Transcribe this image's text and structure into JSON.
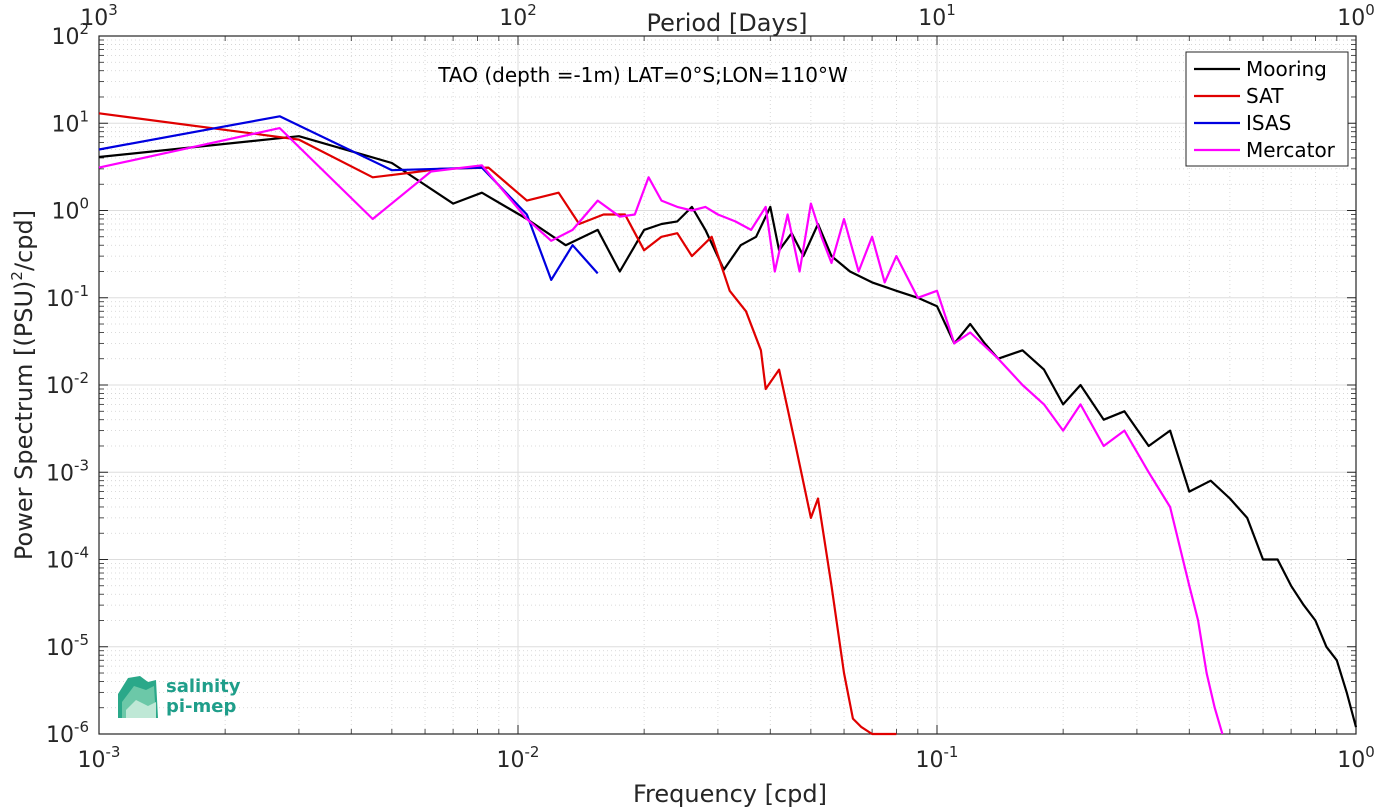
{
  "chart_data": {
    "type": "line",
    "title": "TAO (depth =-1m) LAT=0°S;LON=110°W",
    "xlabel": "Frequency [cpd]",
    "ylabel": "Power Spectrum [(PSU)",
    "ylabel_sup": "2",
    "ylabel_tail": "/cpd]",
    "top_xlabel": "Period [Days]",
    "xscale": "log",
    "yscale": "log",
    "xlim": [
      0.001,
      1
    ],
    "ylim": [
      1e-06,
      100
    ],
    "grid": true,
    "legend_position": "top-right",
    "x_ticks": [
      {
        "base": "10",
        "exp": "-3",
        "value": 0.001
      },
      {
        "base": "10",
        "exp": "-2",
        "value": 0.01
      },
      {
        "base": "10",
        "exp": "-1",
        "value": 0.1
      },
      {
        "base": "10",
        "exp": "0",
        "value": 1
      }
    ],
    "top_ticks": [
      {
        "base": "10",
        "exp": "3",
        "value": 0.001
      },
      {
        "base": "10",
        "exp": "2",
        "value": 0.01
      },
      {
        "base": "10",
        "exp": "1",
        "value": 0.1
      },
      {
        "base": "10",
        "exp": "0",
        "value": 1
      }
    ],
    "y_ticks": [
      {
        "base": "10",
        "exp": "2",
        "value": 100
      },
      {
        "base": "10",
        "exp": "1",
        "value": 10
      },
      {
        "base": "10",
        "exp": "0",
        "value": 1
      },
      {
        "base": "10",
        "exp": "-1",
        "value": 0.1
      },
      {
        "base": "10",
        "exp": "-2",
        "value": 0.01
      },
      {
        "base": "10",
        "exp": "-3",
        "value": 0.001
      },
      {
        "base": "10",
        "exp": "-4",
        "value": 0.0001
      },
      {
        "base": "10",
        "exp": "-5",
        "value": 1e-05
      },
      {
        "base": "10",
        "exp": "-6",
        "value": 1e-06
      }
    ],
    "series": [
      {
        "name": "Mooring",
        "color": "#000000",
        "x": [
          0.001,
          0.003,
          0.005,
          0.007,
          0.0082,
          0.0105,
          0.013,
          0.0155,
          0.0175,
          0.02,
          0.022,
          0.024,
          0.026,
          0.028,
          0.031,
          0.034,
          0.037,
          0.04,
          0.042,
          0.045,
          0.048,
          0.052,
          0.056,
          0.062,
          0.07,
          0.08,
          0.09,
          0.1,
          0.11,
          0.12,
          0.13,
          0.14,
          0.16,
          0.18,
          0.2,
          0.22,
          0.25,
          0.28,
          0.32,
          0.36,
          0.4,
          0.45,
          0.5,
          0.55,
          0.6,
          0.65,
          0.7,
          0.75,
          0.8,
          0.85,
          0.9,
          0.95,
          1.0
        ],
        "y": [
          4.1,
          7.1,
          3.5,
          1.2,
          1.6,
          0.8,
          0.4,
          0.6,
          0.2,
          0.6,
          0.7,
          0.75,
          1.1,
          0.6,
          0.21,
          0.4,
          0.5,
          1.1,
          0.35,
          0.55,
          0.3,
          0.7,
          0.3,
          0.2,
          0.15,
          0.12,
          0.1,
          0.08,
          0.03,
          0.05,
          0.03,
          0.02,
          0.025,
          0.015,
          0.006,
          0.01,
          0.004,
          0.005,
          0.002,
          0.003,
          0.0006,
          0.0008,
          0.0005,
          0.0003,
          0.0001,
          0.0001,
          5e-05,
          3e-05,
          2e-05,
          1e-05,
          7e-06,
          3e-06,
          1.2e-06
        ]
      },
      {
        "name": "SAT",
        "color": "#e00000",
        "x": [
          0.001,
          0.003,
          0.0045,
          0.0055,
          0.0065,
          0.0085,
          0.0105,
          0.0125,
          0.014,
          0.016,
          0.018,
          0.02,
          0.022,
          0.024,
          0.026,
          0.029,
          0.032,
          0.035,
          0.038,
          0.039,
          0.042,
          0.046,
          0.05,
          0.052,
          0.056,
          0.06,
          0.063,
          0.066,
          0.07,
          0.075,
          0.08
        ],
        "y": [
          13.0,
          6.5,
          2.4,
          2.7,
          3.0,
          3.1,
          1.3,
          1.6,
          0.7,
          0.9,
          0.9,
          0.35,
          0.5,
          0.55,
          0.3,
          0.5,
          0.12,
          0.07,
          0.025,
          0.009,
          0.015,
          0.002,
          0.0003,
          0.0005,
          5e-05,
          5e-06,
          1.5e-06,
          1.2e-06,
          1e-06,
          1e-06,
          1e-06
        ]
      },
      {
        "name": "ISAS",
        "color": "#0000e0",
        "x": [
          0.001,
          0.0027,
          0.005,
          0.0082,
          0.0105,
          0.012,
          0.0135,
          0.0155
        ],
        "y": [
          5.0,
          12.0,
          2.9,
          3.1,
          0.9,
          0.16,
          0.4,
          0.19
        ]
      },
      {
        "name": "Mercator",
        "color": "#ff00ff",
        "x": [
          0.001,
          0.0027,
          0.0045,
          0.0062,
          0.0082,
          0.0105,
          0.012,
          0.0135,
          0.0155,
          0.0175,
          0.019,
          0.0205,
          0.022,
          0.024,
          0.026,
          0.028,
          0.03,
          0.033,
          0.036,
          0.039,
          0.041,
          0.044,
          0.047,
          0.05,
          0.053,
          0.056,
          0.06,
          0.065,
          0.07,
          0.075,
          0.08,
          0.09,
          0.1,
          0.11,
          0.12,
          0.14,
          0.16,
          0.18,
          0.2,
          0.22,
          0.25,
          0.28,
          0.32,
          0.36,
          0.4,
          0.42,
          0.44,
          0.46,
          0.48
        ],
        "y": [
          3.1,
          8.8,
          0.8,
          2.8,
          3.3,
          0.8,
          0.45,
          0.6,
          1.3,
          0.85,
          0.9,
          2.4,
          1.3,
          1.1,
          1.0,
          1.1,
          0.9,
          0.75,
          0.6,
          1.1,
          0.2,
          0.9,
          0.2,
          1.2,
          0.5,
          0.25,
          0.8,
          0.2,
          0.5,
          0.15,
          0.3,
          0.1,
          0.12,
          0.03,
          0.04,
          0.02,
          0.01,
          0.006,
          0.003,
          0.006,
          0.002,
          0.003,
          0.001,
          0.0004,
          5e-05,
          2e-05,
          5e-06,
          2e-06,
          1e-06
        ]
      }
    ]
  },
  "logo": {
    "line1": "salinity",
    "line2": "pi-mep"
  }
}
